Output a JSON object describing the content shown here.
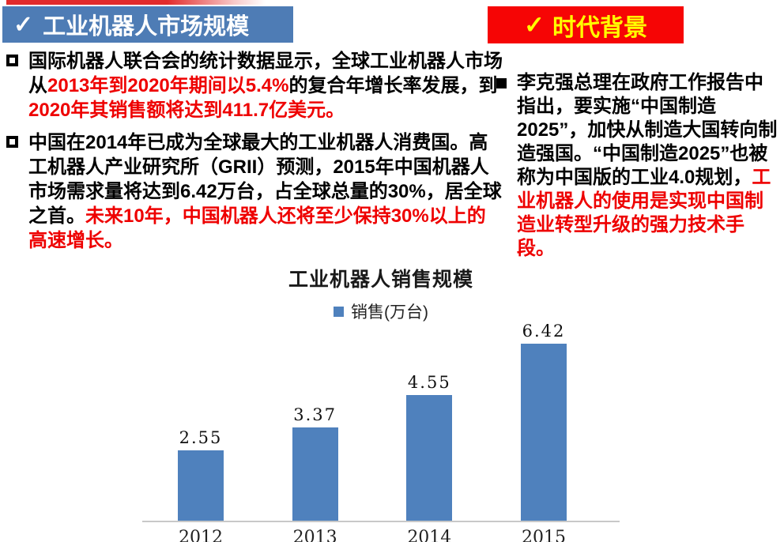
{
  "colors": {
    "header_blue": "#4e7cb5",
    "header_red": "#f60505",
    "header_yellow": "#ffff00",
    "bar_blue": "#4f81bd",
    "emphasis_red": "#ee0000",
    "axis_gray": "#c8c8c8"
  },
  "left_header": {
    "check": "✓",
    "title": "工业机器人市场规模"
  },
  "right_header": {
    "check": "✓",
    "title": "时代背景"
  },
  "left_bullets": [
    {
      "segments": [
        {
          "text": "国际机器人联合会的统计数据显示，全球工业机器人市场从",
          "emphasis": false
        },
        {
          "text": "2013年到2020年期间以5.4%",
          "emphasis": true
        },
        {
          "text": "的复合年增长率发展，到",
          "emphasis": false
        },
        {
          "text": "2020年其销售额将达到411.7亿美元。",
          "emphasis": true
        }
      ]
    },
    {
      "segments": [
        {
          "text": "中国在2014年已成为全球最大的工业机器人消费国。高工机器人产业研究所（GRII）预测，2015年中国机器人市场需求量将达到6.42万台，占全球总量的30%，居全球之首。",
          "emphasis": false
        },
        {
          "text": "未来10年，中国机器人还将至少保持30%以上的高速增长。",
          "emphasis": true
        }
      ]
    }
  ],
  "right_bullets": [
    {
      "segments": [
        {
          "text": "李克强总理在政府工作报告中指出，要实施“中国制造2025”，加快从制造大国转向制造强国。“中国制造2025”也被称为中国版的工业4.0规划，",
          "emphasis": false
        },
        {
          "text": "工业机器人的使用是实现中国制造业转型升级的强力技术手段。",
          "emphasis": true
        }
      ]
    }
  ],
  "chart_data": {
    "type": "bar",
    "title": "工业机器人销售规模",
    "legend_label": "销售(万台)",
    "series": [
      {
        "name": "销售(万台)",
        "values": [
          2.55,
          3.37,
          4.55,
          6.42
        ]
      }
    ],
    "categories": [
      "2012",
      "2013",
      "2014",
      "2015"
    ],
    "values": [
      2.55,
      3.37,
      4.55,
      6.42
    ],
    "data_labels": true,
    "ylim": [
      0,
      6.42
    ],
    "grid": false,
    "legend_position": "top",
    "xlabel": "",
    "ylabel": ""
  }
}
